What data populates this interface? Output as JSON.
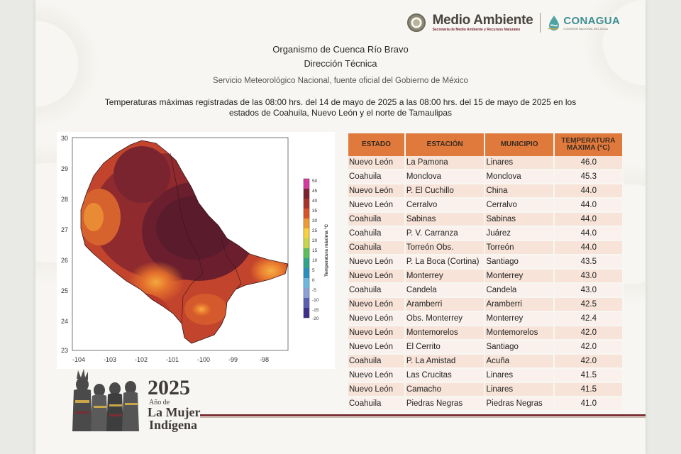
{
  "logos": {
    "medio_ambiente": "Medio Ambiente",
    "medio_ambiente_sub": "Secretaría de Medio Ambiente y Recursos Naturales",
    "conagua": "CONAGUA",
    "conagua_sub": "COMISIÓN NACIONAL DEL AGUA"
  },
  "header": {
    "organismo": "Organismo de Cuenca Río Bravo",
    "direccion": "Dirección Técnica",
    "servicio": "Servicio Meteorológico Nacional, fuente oficial del Gobierno de México",
    "descripcion": "Temperaturas máximas registradas de las 08:00 hrs. del 14 de mayo de 2025 a las 08:00 hrs. del 15 de mayo de 2025 en los estados de Coahuila, Nuevo León y el norte de Tamaulipas"
  },
  "map": {
    "y_ticks": [
      "30",
      "29",
      "28",
      "27",
      "26",
      "25",
      "24",
      "23"
    ],
    "x_ticks": [
      "-104",
      "-103",
      "-102",
      "-101",
      "-100",
      "-99",
      "-98"
    ],
    "colorbar_ticks": [
      "50",
      "45",
      "40",
      "35",
      "30",
      "25",
      "20",
      "15",
      "10",
      "5",
      "0",
      "-5",
      "-10",
      "-15",
      "-20"
    ],
    "colorbar_label": "Temperatura máxima °C",
    "colors": {
      "hot_dark": "#5c1a2a",
      "hot_mid": "#7d1f2e",
      "hot": "#a8312a",
      "warm": "#c84a2a",
      "orange": "#e2702e",
      "light_orange": "#f29a3a"
    }
  },
  "table": {
    "headers": [
      "ESTADO",
      "ESTACIÓN",
      "MUNICIPIO",
      "TEMPERATURA MÁXIMA (°C)"
    ],
    "rows": [
      [
        "Nuevo León",
        "La Pamona",
        "Linares",
        "46.0"
      ],
      [
        "Coahuila",
        "Monclova",
        "Monclova",
        "45.3"
      ],
      [
        "Nuevo León",
        "P. El Cuchillo",
        "China",
        "44.0"
      ],
      [
        "Nuevo León",
        "Cerralvo",
        "Cerralvo",
        "44.0"
      ],
      [
        "Coahuila",
        "Sabinas",
        "Sabinas",
        "44.0"
      ],
      [
        "Coahuila",
        "P. V. Carranza",
        "Juárez",
        "44.0"
      ],
      [
        "Coahuila",
        "Torreón Obs.",
        "Torreón",
        "44.0"
      ],
      [
        "Nuevo León",
        "P. La Boca (Cortina)",
        "Santiago",
        "43.5"
      ],
      [
        "Nuevo León",
        "Monterrey",
        "Monterrey",
        "43.0"
      ],
      [
        "Coahuila",
        "Candela",
        "Candela",
        "43.0"
      ],
      [
        "Nuevo León",
        "Aramberri",
        "Aramberri",
        "42.5"
      ],
      [
        "Nuevo León",
        "Obs. Monterrey",
        "Monterrey",
        "42.4"
      ],
      [
        "Nuevo León",
        "Montemorelos",
        "Montemorelos",
        "42.0"
      ],
      [
        "Nuevo León",
        "El Cerrito",
        "Santiago",
        "42.0"
      ],
      [
        "Coahuila",
        "P. La Amistad",
        "Acuña",
        "42.0"
      ],
      [
        "Nuevo León",
        "Las Crucitas",
        "Linares",
        "41.5"
      ],
      [
        "Nuevo León",
        "Camacho",
        "Linares",
        "41.5"
      ],
      [
        "Coahuila",
        "Piedras Negras",
        "Piedras Negras",
        "41.0"
      ]
    ]
  },
  "footer": {
    "year": "2025",
    "ano_de": "Año de",
    "la_mujer": "La Mujer",
    "indigena": "Indígena"
  }
}
